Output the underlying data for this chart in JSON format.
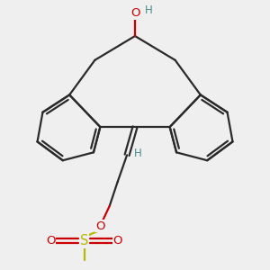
{
  "bg_color": "#efefef",
  "bond_color": "#2a2a2a",
  "oxygen_color": "#cc0000",
  "sulfur_color": "#b8b800",
  "teal_color": "#4a8a8a",
  "lw": 1.6,
  "lw_inner": 1.4,
  "figsize": [
    3.0,
    3.0
  ],
  "dpi": 100,
  "xlim": [
    0.5,
    9.5
  ],
  "ylim": [
    0.3,
    10.3
  ]
}
